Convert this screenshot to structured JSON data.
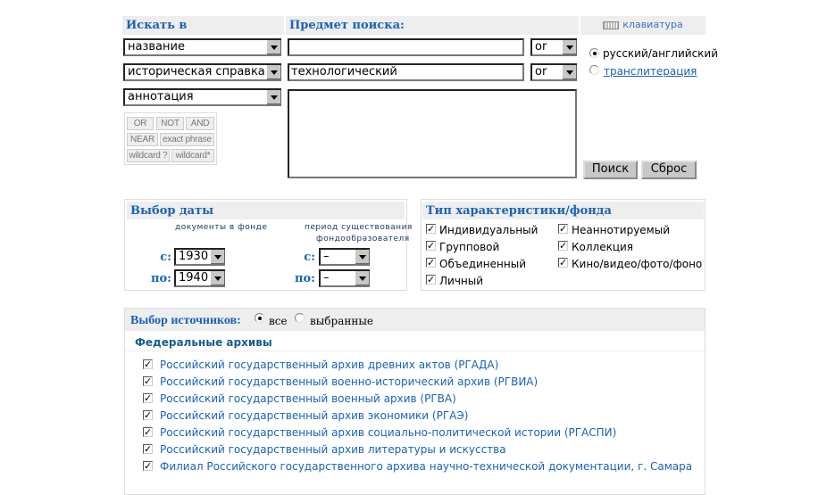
{
  "search": {
    "search_in_title": "Искать в",
    "subject_title": "Предмет поиска:",
    "keyboard_label": "клавиатура",
    "fields": [
      {
        "field": "название",
        "value": "",
        "operator": "or"
      },
      {
        "field": "историческая справка",
        "value": "технологический",
        "operator": "or"
      },
      {
        "field": "аннотация",
        "value": ""
      }
    ],
    "operators": [
      "OR",
      "NOT",
      "AND",
      "NEAR",
      "exact phrase",
      "wildcard ?",
      "wildcard*"
    ],
    "lang_options": [
      {
        "label": "русский/английский",
        "selected": true
      },
      {
        "label": "транслитерация",
        "selected": false
      }
    ],
    "search_button": "Поиск",
    "reset_button": "Сброс"
  },
  "dates": {
    "title": "Выбор даты",
    "col1": "документы в фонде",
    "col2a": "период существования",
    "col2b": "фондообразователя",
    "from_label": "с:",
    "to_label": "по:",
    "doc_from": "1930",
    "doc_to": "1940",
    "period_from": "–",
    "period_to": "–"
  },
  "types": {
    "title": "Тип характеристики/фонда",
    "items": [
      {
        "label": "Индивидуальный",
        "checked": true
      },
      {
        "label": "Групповой",
        "checked": true
      },
      {
        "label": "Объединенный",
        "checked": true
      },
      {
        "label": "Личный",
        "checked": true
      },
      {
        "label": "Неаннотируемый",
        "checked": true
      },
      {
        "label": "Коллекция",
        "checked": true
      },
      {
        "label": "Кино/видео/фото/фоно",
        "checked": true
      }
    ]
  },
  "sources": {
    "title": "Выбор источников:",
    "all": "все",
    "selected": "выбранные",
    "group": "Федеральные архивы",
    "archives": [
      "Российский государственный архив древних актов (РГАДА)",
      "Российский государственный военно-исторический архив (РГВИА)",
      "Российский государственный военный архив (РГВА)",
      "Российский государственный архив экономики (РГАЭ)",
      "Российский государственный архив социально-политической истории (РГАСПИ)",
      "Российский государственный архив литературы и искусства",
      "Филиал Российского государственного архива научно-технической документации, г. Самара"
    ]
  }
}
